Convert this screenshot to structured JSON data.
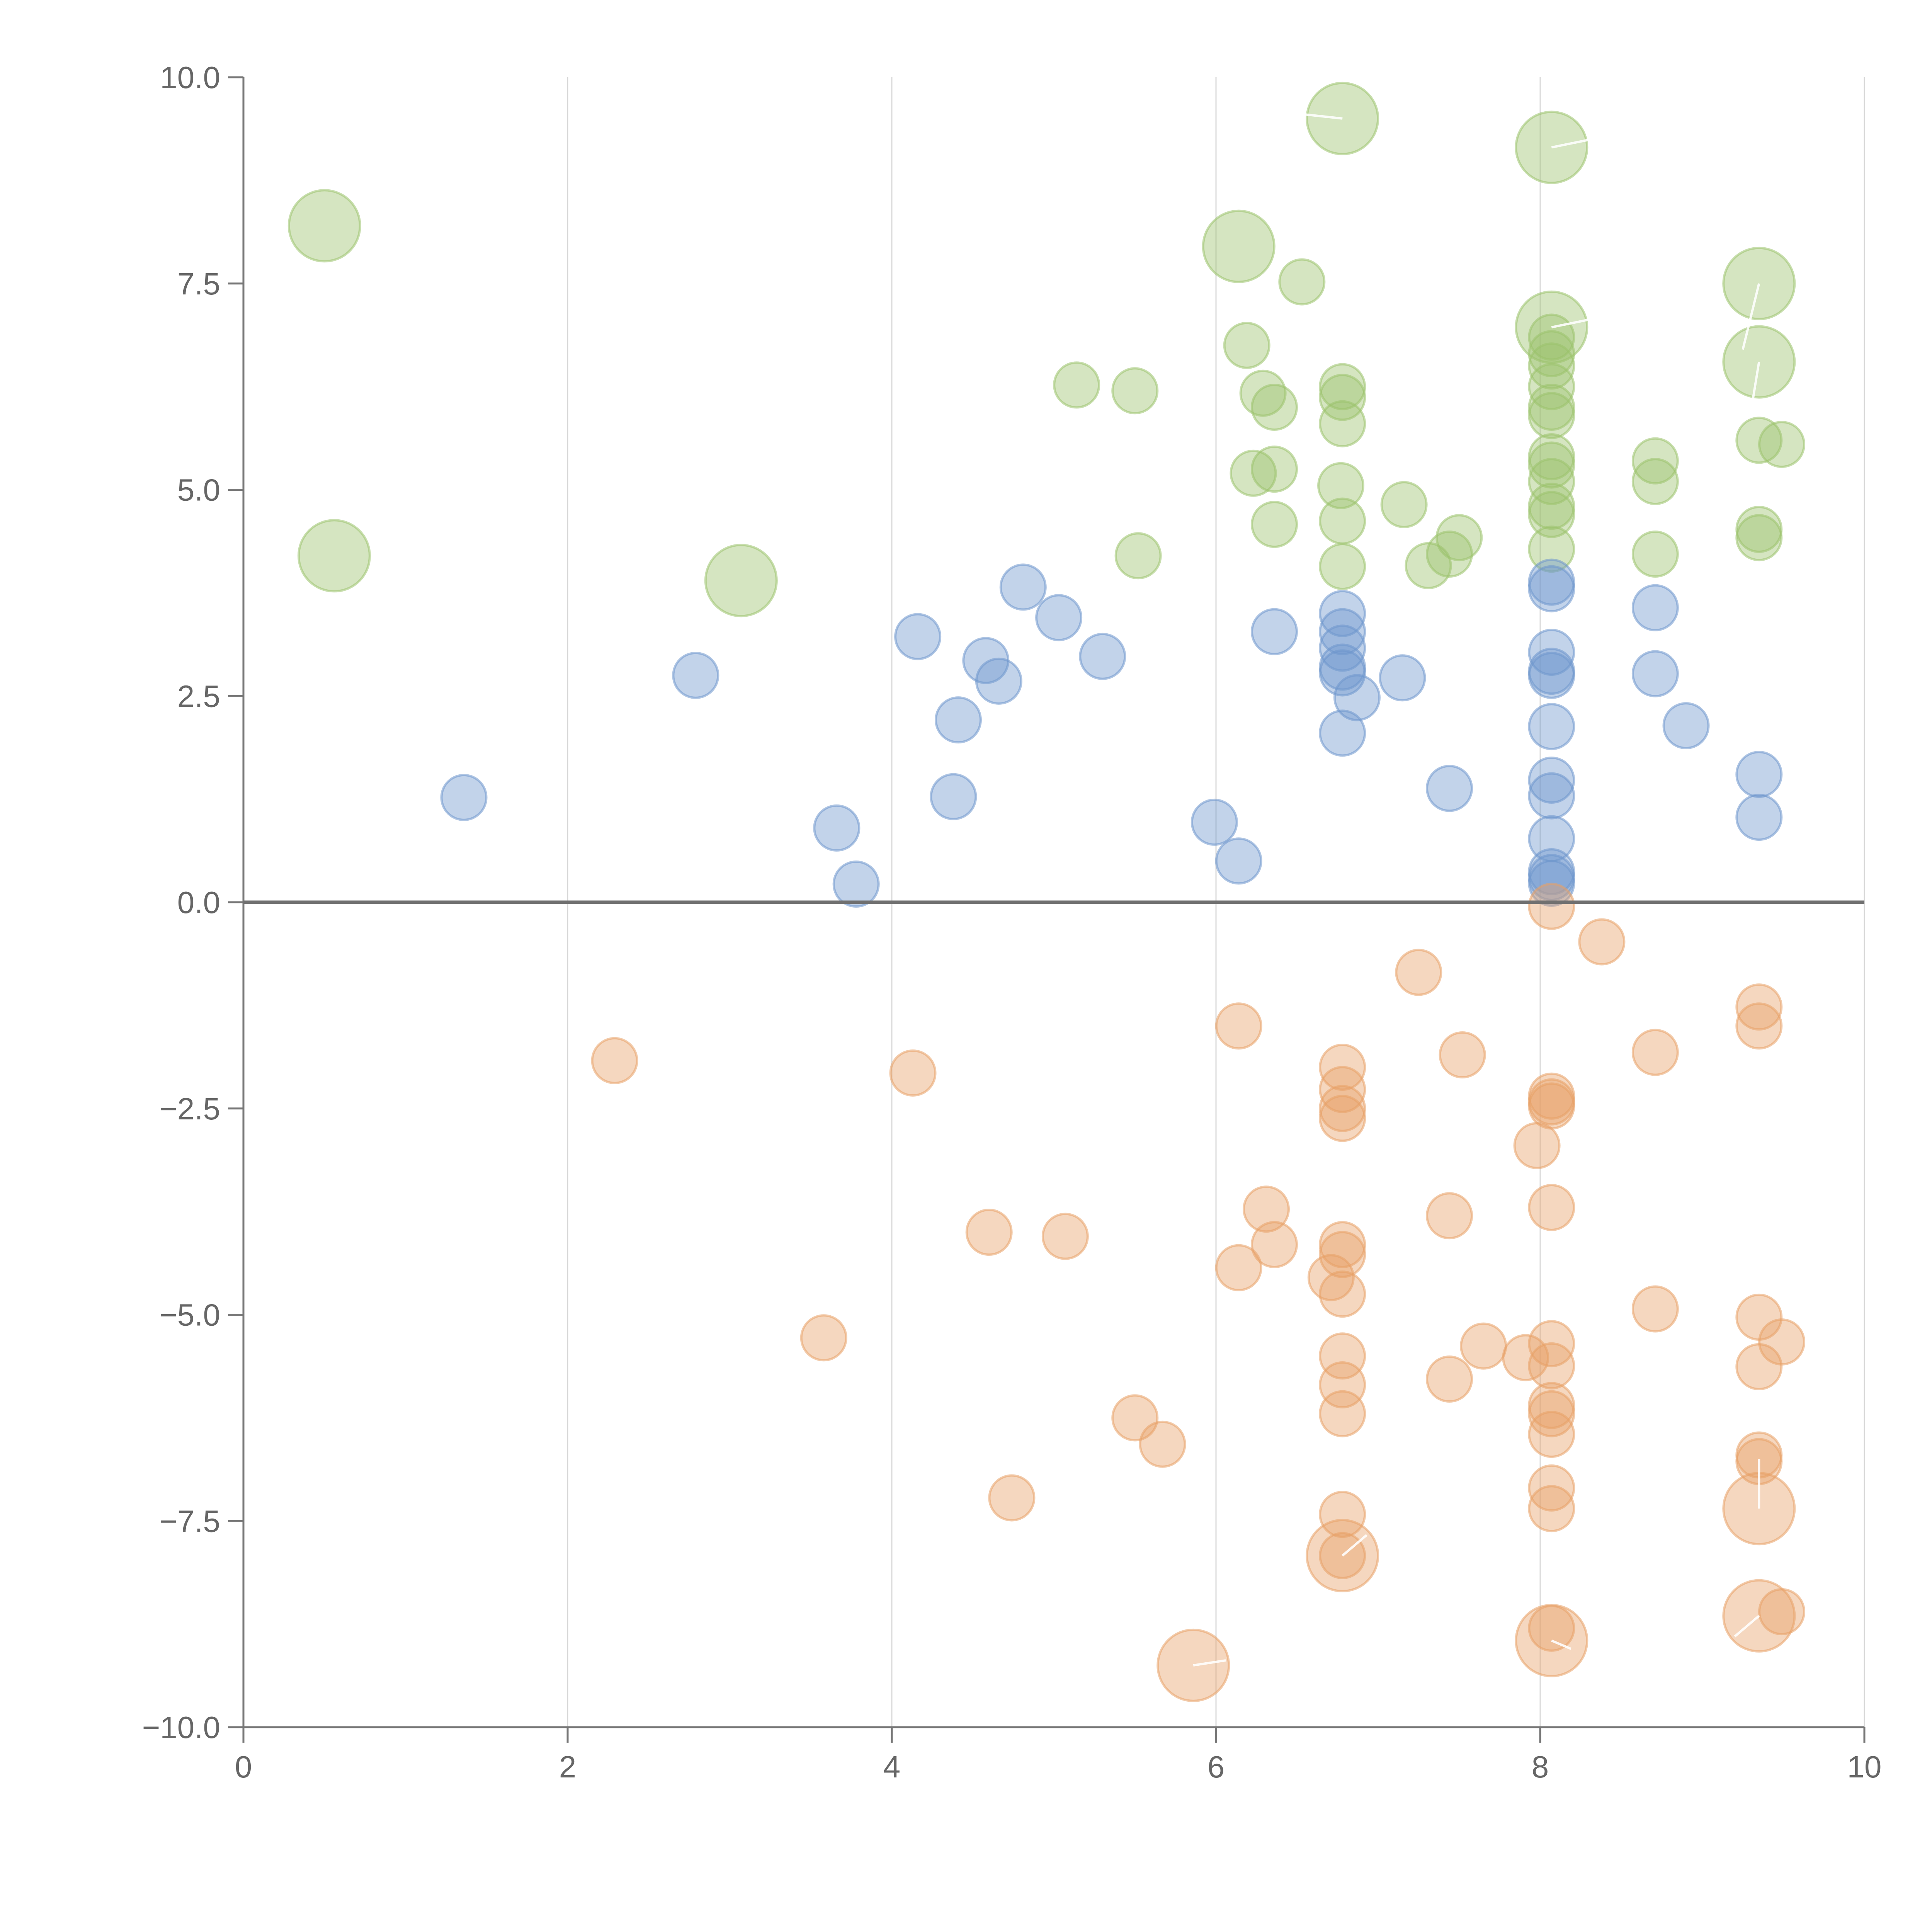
{
  "chart_data": {
    "type": "scatter",
    "title": "",
    "xlabel": "",
    "ylabel": "",
    "xlim": [
      0,
      10
    ],
    "ylim": [
      -10,
      10
    ],
    "x_ticks": [
      "0",
      "2",
      "4",
      "6",
      "8",
      "10"
    ],
    "y_ticks": [
      "10.0",
      "7.5",
      "5.0",
      "2.5",
      "0.0",
      "−2.5",
      "−5.0",
      "−7.5",
      "−10.0"
    ],
    "x_tick_values": [
      0,
      2,
      4,
      6,
      8,
      10
    ],
    "y_tick_values": [
      10,
      7.5,
      5,
      2.5,
      0,
      -2.5,
      -5,
      -7.5,
      -10
    ],
    "grid": "vertical",
    "series": [
      {
        "name": "green",
        "color": "#9bc26b",
        "points": [
          {
            "x": 0.5,
            "y": 8.2,
            "size": 2
          },
          {
            "x": 0.56,
            "y": 4.2,
            "size": 2
          },
          {
            "x": 3.07,
            "y": 3.9,
            "size": 2
          },
          {
            "x": 6.14,
            "y": 7.95,
            "size": 2
          },
          {
            "x": 6.78,
            "y": 9.5,
            "size": 2
          },
          {
            "x": 8.07,
            "y": 9.15,
            "size": 2
          },
          {
            "x": 8.07,
            "y": 6.97,
            "size": 2
          },
          {
            "x": 9.35,
            "y": 7.5,
            "size": 2
          },
          {
            "x": 9.35,
            "y": 6.55,
            "size": 2
          },
          {
            "x": 5.14,
            "y": 6.27,
            "size": 1
          },
          {
            "x": 5.5,
            "y": 6.2,
            "size": 1
          },
          {
            "x": 5.52,
            "y": 4.2,
            "size": 1
          },
          {
            "x": 6.19,
            "y": 6.75,
            "size": 1
          },
          {
            "x": 6.29,
            "y": 6.17,
            "size": 1
          },
          {
            "x": 6.36,
            "y": 6.0,
            "size": 1
          },
          {
            "x": 6.53,
            "y": 7.52,
            "size": 1
          },
          {
            "x": 6.23,
            "y": 5.2,
            "size": 1
          },
          {
            "x": 6.36,
            "y": 5.25,
            "size": 1
          },
          {
            "x": 6.36,
            "y": 4.58,
            "size": 1
          },
          {
            "x": 6.78,
            "y": 6.25,
            "size": 1
          },
          {
            "x": 6.78,
            "y": 6.12,
            "size": 1
          },
          {
            "x": 6.78,
            "y": 5.8,
            "size": 1
          },
          {
            "x": 6.77,
            "y": 5.05,
            "size": 1
          },
          {
            "x": 6.78,
            "y": 4.62,
            "size": 1
          },
          {
            "x": 6.78,
            "y": 4.07,
            "size": 1
          },
          {
            "x": 7.16,
            "y": 4.82,
            "size": 1
          },
          {
            "x": 7.31,
            "y": 4.08,
            "size": 1
          },
          {
            "x": 7.44,
            "y": 4.22,
            "size": 1
          },
          {
            "x": 7.5,
            "y": 4.42,
            "size": 1
          },
          {
            "x": 8.07,
            "y": 6.85,
            "size": 1
          },
          {
            "x": 8.07,
            "y": 6.65,
            "size": 1
          },
          {
            "x": 8.07,
            "y": 6.5,
            "size": 1
          },
          {
            "x": 8.07,
            "y": 6.25,
            "size": 1
          },
          {
            "x": 8.07,
            "y": 6.0,
            "size": 1
          },
          {
            "x": 8.07,
            "y": 5.9,
            "size": 1
          },
          {
            "x": 8.07,
            "y": 5.4,
            "size": 1
          },
          {
            "x": 8.07,
            "y": 5.3,
            "size": 1
          },
          {
            "x": 8.07,
            "y": 5.1,
            "size": 1
          },
          {
            "x": 8.07,
            "y": 4.8,
            "size": 1
          },
          {
            "x": 8.07,
            "y": 4.7,
            "size": 1
          },
          {
            "x": 8.07,
            "y": 4.28,
            "size": 1
          },
          {
            "x": 8.71,
            "y": 5.35,
            "size": 1
          },
          {
            "x": 8.71,
            "y": 5.1,
            "size": 1
          },
          {
            "x": 8.71,
            "y": 4.22,
            "size": 1
          },
          {
            "x": 9.35,
            "y": 5.6,
            "size": 1
          },
          {
            "x": 9.35,
            "y": 4.52,
            "size": 1
          },
          {
            "x": 9.35,
            "y": 4.42,
            "size": 1
          },
          {
            "x": 9.49,
            "y": 5.55,
            "size": 1
          }
        ]
      },
      {
        "name": "blue",
        "color": "#6e95cc",
        "points": [
          {
            "x": 1.36,
            "y": 1.27,
            "size": 1
          },
          {
            "x": 2.79,
            "y": 2.75,
            "size": 1
          },
          {
            "x": 3.66,
            "y": 0.9,
            "size": 1
          },
          {
            "x": 3.78,
            "y": 0.22,
            "size": 1
          },
          {
            "x": 4.16,
            "y": 3.22,
            "size": 1
          },
          {
            "x": 4.38,
            "y": 1.28,
            "size": 1
          },
          {
            "x": 4.41,
            "y": 2.21,
            "size": 1
          },
          {
            "x": 4.58,
            "y": 2.93,
            "size": 1
          },
          {
            "x": 4.66,
            "y": 2.68,
            "size": 1
          },
          {
            "x": 4.81,
            "y": 3.82,
            "size": 1
          },
          {
            "x": 5.03,
            "y": 3.45,
            "size": 1
          },
          {
            "x": 5.3,
            "y": 2.98,
            "size": 1
          },
          {
            "x": 5.99,
            "y": 0.97,
            "size": 1
          },
          {
            "x": 6.14,
            "y": 0.5,
            "size": 1
          },
          {
            "x": 6.36,
            "y": 3.28,
            "size": 1
          },
          {
            "x": 6.78,
            "y": 3.5,
            "size": 1
          },
          {
            "x": 6.78,
            "y": 3.28,
            "size": 1
          },
          {
            "x": 6.78,
            "y": 3.08,
            "size": 1
          },
          {
            "x": 6.78,
            "y": 2.85,
            "size": 1
          },
          {
            "x": 6.78,
            "y": 2.78,
            "size": 1
          },
          {
            "x": 6.78,
            "y": 2.05,
            "size": 1
          },
          {
            "x": 6.87,
            "y": 2.48,
            "size": 1
          },
          {
            "x": 7.15,
            "y": 2.72,
            "size": 1
          },
          {
            "x": 7.44,
            "y": 1.38,
            "size": 1
          },
          {
            "x": 8.07,
            "y": 3.88,
            "size": 1
          },
          {
            "x": 8.07,
            "y": 3.8,
            "size": 1
          },
          {
            "x": 8.07,
            "y": 3.03,
            "size": 1
          },
          {
            "x": 8.07,
            "y": 2.8,
            "size": 1
          },
          {
            "x": 8.07,
            "y": 2.75,
            "size": 1
          },
          {
            "x": 8.07,
            "y": 2.13,
            "size": 1
          },
          {
            "x": 8.07,
            "y": 1.48,
            "size": 1
          },
          {
            "x": 8.07,
            "y": 1.29,
            "size": 1
          },
          {
            "x": 8.07,
            "y": 0.77,
            "size": 1
          },
          {
            "x": 8.07,
            "y": 0.37,
            "size": 1
          },
          {
            "x": 8.07,
            "y": 0.3,
            "size": 1
          },
          {
            "x": 8.07,
            "y": 0.23,
            "size": 1
          },
          {
            "x": 8.71,
            "y": 3.57,
            "size": 1
          },
          {
            "x": 8.71,
            "y": 2.77,
            "size": 1
          },
          {
            "x": 8.9,
            "y": 2.14,
            "size": 1
          },
          {
            "x": 9.35,
            "y": 1.55,
            "size": 1
          },
          {
            "x": 9.35,
            "y": 1.03,
            "size": 1
          }
        ]
      },
      {
        "name": "orange",
        "color": "#e8a066",
        "points": [
          {
            "x": 2.29,
            "y": -1.92,
            "size": 1
          },
          {
            "x": 3.58,
            "y": -5.28,
            "size": 1
          },
          {
            "x": 4.13,
            "y": -2.07,
            "size": 1
          },
          {
            "x": 4.6,
            "y": -4.0,
            "size": 1
          },
          {
            "x": 4.74,
            "y": -7.22,
            "size": 1
          },
          {
            "x": 5.07,
            "y": -4.05,
            "size": 1
          },
          {
            "x": 5.5,
            "y": -6.25,
            "size": 1
          },
          {
            "x": 5.67,
            "y": -6.57,
            "size": 1
          },
          {
            "x": 6.14,
            "y": -1.5,
            "size": 1
          },
          {
            "x": 6.14,
            "y": -4.43,
            "size": 1
          },
          {
            "x": 6.31,
            "y": -3.72,
            "size": 1
          },
          {
            "x": 6.36,
            "y": -4.15,
            "size": 1
          },
          {
            "x": 6.71,
            "y": -4.55,
            "size": 1
          },
          {
            "x": 6.78,
            "y": -2.0,
            "size": 1
          },
          {
            "x": 6.78,
            "y": -2.27,
            "size": 1
          },
          {
            "x": 6.78,
            "y": -2.5,
            "size": 1
          },
          {
            "x": 6.78,
            "y": -2.62,
            "size": 1
          },
          {
            "x": 6.78,
            "y": -4.15,
            "size": 1
          },
          {
            "x": 6.78,
            "y": -4.27,
            "size": 1
          },
          {
            "x": 6.78,
            "y": -4.75,
            "size": 1
          },
          {
            "x": 6.78,
            "y": -5.5,
            "size": 1
          },
          {
            "x": 6.78,
            "y": -5.85,
            "size": 1
          },
          {
            "x": 6.78,
            "y": -6.2,
            "size": 1
          },
          {
            "x": 6.78,
            "y": -7.42,
            "size": 1
          },
          {
            "x": 6.78,
            "y": -7.92,
            "size": 1
          },
          {
            "x": 7.25,
            "y": -0.85,
            "size": 1
          },
          {
            "x": 7.44,
            "y": -3.8,
            "size": 1
          },
          {
            "x": 7.44,
            "y": -5.78,
            "size": 1
          },
          {
            "x": 7.52,
            "y": -1.85,
            "size": 1
          },
          {
            "x": 7.65,
            "y": -5.38,
            "size": 1
          },
          {
            "x": 7.91,
            "y": -5.52,
            "size": 1
          },
          {
            "x": 7.98,
            "y": -2.95,
            "size": 1
          },
          {
            "x": 8.07,
            "y": -0.05,
            "size": 1
          },
          {
            "x": 8.07,
            "y": -2.35,
            "size": 1
          },
          {
            "x": 8.07,
            "y": -2.42,
            "size": 1
          },
          {
            "x": 8.07,
            "y": -2.47,
            "size": 1
          },
          {
            "x": 8.07,
            "y": -3.7,
            "size": 1
          },
          {
            "x": 8.07,
            "y": -5.35,
            "size": 1
          },
          {
            "x": 8.07,
            "y": -5.62,
            "size": 1
          },
          {
            "x": 8.07,
            "y": -6.1,
            "size": 1
          },
          {
            "x": 8.07,
            "y": -6.2,
            "size": 1
          },
          {
            "x": 8.07,
            "y": -6.45,
            "size": 1
          },
          {
            "x": 8.07,
            "y": -7.1,
            "size": 1
          },
          {
            "x": 8.07,
            "y": -7.35,
            "size": 1
          },
          {
            "x": 8.07,
            "y": -8.8,
            "size": 1
          },
          {
            "x": 8.38,
            "y": -0.48,
            "size": 1
          },
          {
            "x": 8.71,
            "y": -1.82,
            "size": 1
          },
          {
            "x": 8.71,
            "y": -4.93,
            "size": 1
          },
          {
            "x": 9.35,
            "y": -1.27,
            "size": 1
          },
          {
            "x": 9.35,
            "y": -1.5,
            "size": 1
          },
          {
            "x": 9.35,
            "y": -5.03,
            "size": 1
          },
          {
            "x": 9.35,
            "y": -5.63,
            "size": 1
          },
          {
            "x": 9.35,
            "y": -6.7,
            "size": 1
          },
          {
            "x": 9.35,
            "y": -6.78,
            "size": 1
          },
          {
            "x": 9.49,
            "y": -5.33,
            "size": 1
          },
          {
            "x": 9.49,
            "y": -8.6,
            "size": 1
          },
          {
            "x": 5.86,
            "y": -9.25,
            "size": 2
          },
          {
            "x": 6.78,
            "y": -7.92,
            "size": 2
          },
          {
            "x": 8.07,
            "y": -8.95,
            "size": 2
          },
          {
            "x": 9.35,
            "y": -7.35,
            "size": 2
          },
          {
            "x": 9.35,
            "y": -8.65,
            "size": 2
          }
        ]
      }
    ]
  }
}
